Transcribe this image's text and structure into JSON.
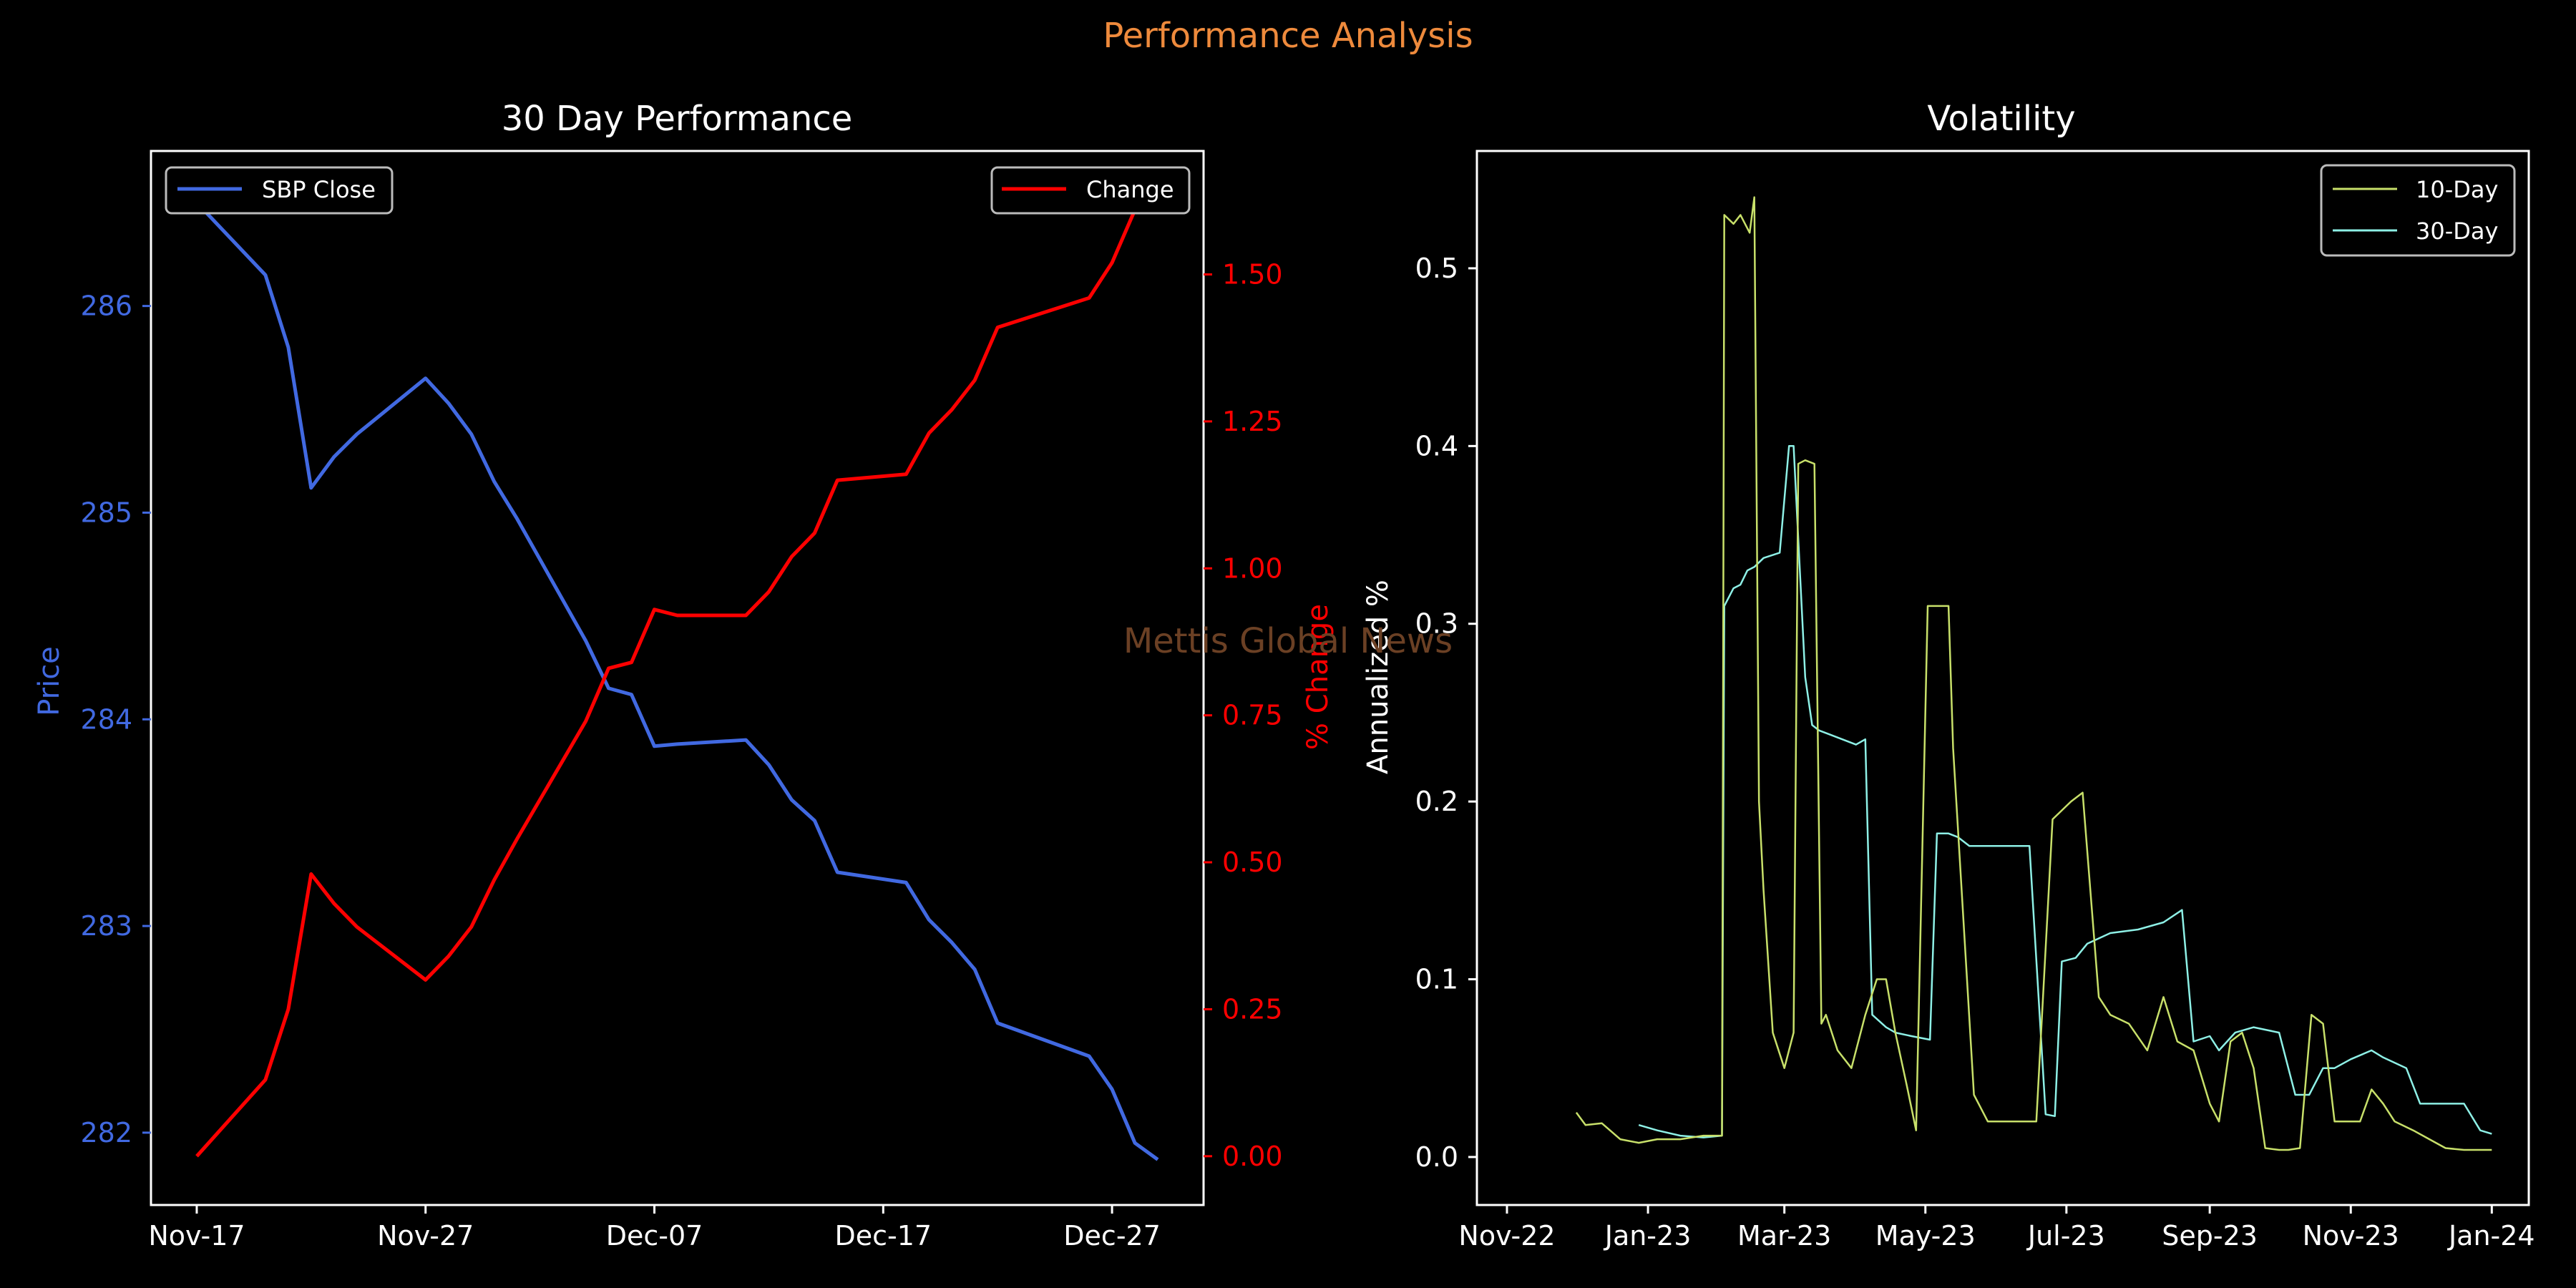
{
  "suptitle": "Performance Analysis",
  "watermark": "Mettis Global News",
  "colors": {
    "background": "#000000",
    "axes": "#ffffff",
    "price_line": "#4169e1",
    "change_line": "#ff0000",
    "vol10_line": "#c8e06a",
    "vol30_line": "#8ef0e6",
    "suptitle": "#ee8a3c",
    "watermark": "#6b4024"
  },
  "chart_data": [
    {
      "type": "line",
      "title": "30 Day Performance",
      "xlabel": "",
      "ylabel": "Price",
      "y2label": "% Change",
      "x_ticks": [
        "Nov-17",
        "Nov-27",
        "Dec-07",
        "Dec-17",
        "Dec-27"
      ],
      "xlim": [
        "2023-11-15",
        "2023-12-31"
      ],
      "ylim": [
        281.65,
        286.75
      ],
      "y_ticks": [
        282,
        283,
        284,
        285,
        286
      ],
      "y2lim": [
        -0.083,
        1.71
      ],
      "y2_ticks": [
        "0.00",
        "0.25",
        "0.50",
        "0.75",
        "1.00",
        "1.25",
        "1.50"
      ],
      "legend_left": "top-left",
      "legend_right": "top-right",
      "series": [
        {
          "name": "SBP Close",
          "axis": "left",
          "x": [
            "2023-11-17",
            "2023-11-20",
            "2023-11-21",
            "2023-11-22",
            "2023-11-23",
            "2023-11-24",
            "2023-11-27",
            "2023-11-28",
            "2023-11-29",
            "2023-11-30",
            "2023-12-01",
            "2023-12-04",
            "2023-12-05",
            "2023-12-06",
            "2023-12-07",
            "2023-12-08",
            "2023-12-11",
            "2023-12-12",
            "2023-12-13",
            "2023-12-14",
            "2023-12-15",
            "2023-12-18",
            "2023-12-19",
            "2023-12-20",
            "2023-12-21",
            "2023-12-22",
            "2023-12-26",
            "2023-12-27",
            "2023-12-28",
            "2023-12-29"
          ],
          "values": [
            286.5,
            286.15,
            285.8,
            285.12,
            285.27,
            285.38,
            285.65,
            285.53,
            285.38,
            285.15,
            284.97,
            284.38,
            284.15,
            284.12,
            283.87,
            283.88,
            283.9,
            283.78,
            283.61,
            283.51,
            283.26,
            283.21,
            283.03,
            282.92,
            282.79,
            282.53,
            282.37,
            282.21,
            281.95,
            281.87
          ]
        },
        {
          "name": "Change",
          "axis": "right",
          "x": [
            "2023-11-17",
            "2023-11-20",
            "2023-11-21",
            "2023-11-22",
            "2023-11-23",
            "2023-11-24",
            "2023-11-27",
            "2023-11-28",
            "2023-11-29",
            "2023-11-30",
            "2023-12-01",
            "2023-12-04",
            "2023-12-05",
            "2023-12-06",
            "2023-12-07",
            "2023-12-08",
            "2023-12-11",
            "2023-12-12",
            "2023-12-13",
            "2023-12-14",
            "2023-12-15",
            "2023-12-18",
            "2023-12-19",
            "2023-12-20",
            "2023-12-21",
            "2023-12-22",
            "2023-12-26",
            "2023-12-27",
            "2023-12-28",
            "2023-12-29"
          ],
          "values": [
            0.0,
            0.13,
            0.25,
            0.48,
            0.43,
            0.39,
            0.3,
            0.34,
            0.39,
            0.47,
            0.54,
            0.74,
            0.83,
            0.84,
            0.93,
            0.92,
            0.92,
            0.96,
            1.02,
            1.06,
            1.15,
            1.16,
            1.23,
            1.27,
            1.32,
            1.41,
            1.46,
            1.52,
            1.61,
            1.65
          ]
        }
      ]
    },
    {
      "type": "line",
      "title": "Volatility",
      "xlabel": "",
      "ylabel": "Annualized %",
      "x_ticks": [
        "Nov-22",
        "Jan-23",
        "Mar-23",
        "May-23",
        "Jul-23",
        "Sep-23",
        "Nov-23",
        "Jan-24"
      ],
      "xlim": [
        "2022-10-19",
        "2024-01-17"
      ],
      "ylim": [
        -0.027,
        0.566
      ],
      "y_ticks": [
        "0.0",
        "0.1",
        "0.2",
        "0.3",
        "0.4",
        "0.5"
      ],
      "legend": "top-right",
      "series": [
        {
          "name": "10-Day",
          "x": [
            "2022-12-01",
            "2022-12-05",
            "2022-12-12",
            "2022-12-20",
            "2022-12-28",
            "2023-01-05",
            "2023-01-15",
            "2023-01-25",
            "2023-02-02",
            "2023-02-03",
            "2023-02-07",
            "2023-02-10",
            "2023-02-14",
            "2023-02-16",
            "2023-02-18",
            "2023-02-20",
            "2023-02-24",
            "2023-03-01",
            "2023-03-05",
            "2023-03-07",
            "2023-03-10",
            "2023-03-14",
            "2023-03-17",
            "2023-03-19",
            "2023-03-24",
            "2023-03-30",
            "2023-04-05",
            "2023-04-10",
            "2023-04-14",
            "2023-04-18",
            "2023-04-23",
            "2023-04-27",
            "2023-05-02",
            "2023-05-06",
            "2023-05-11",
            "2023-05-13",
            "2023-05-22",
            "2023-05-24",
            "2023-05-28",
            "2023-06-05",
            "2023-06-10",
            "2023-06-18",
            "2023-06-25",
            "2023-07-03",
            "2023-07-08",
            "2023-07-15",
            "2023-07-20",
            "2023-07-28",
            "2023-08-05",
            "2023-08-12",
            "2023-08-18",
            "2023-08-25",
            "2023-09-01",
            "2023-09-05",
            "2023-09-10",
            "2023-09-15",
            "2023-09-20",
            "2023-09-25",
            "2023-10-01",
            "2023-10-05",
            "2023-10-10",
            "2023-10-15",
            "2023-10-20",
            "2023-10-25",
            "2023-11-01",
            "2023-11-05",
            "2023-11-10",
            "2023-11-15",
            "2023-11-20",
            "2023-11-28",
            "2023-12-05",
            "2023-12-12",
            "2023-12-20",
            "2023-12-27",
            "2024-01-01"
          ],
          "values": [
            0.025,
            0.018,
            0.019,
            0.01,
            0.008,
            0.01,
            0.01,
            0.012,
            0.012,
            0.53,
            0.525,
            0.53,
            0.52,
            0.54,
            0.2,
            0.15,
            0.07,
            0.05,
            0.07,
            0.39,
            0.392,
            0.39,
            0.075,
            0.08,
            0.06,
            0.05,
            0.08,
            0.1,
            0.1,
            0.07,
            0.04,
            0.015,
            0.31,
            0.31,
            0.31,
            0.23,
            0.035,
            0.03,
            0.02,
            0.02,
            0.02,
            0.02,
            0.19,
            0.2,
            0.205,
            0.09,
            0.08,
            0.075,
            0.06,
            0.09,
            0.065,
            0.06,
            0.03,
            0.02,
            0.065,
            0.07,
            0.05,
            0.005,
            0.004,
            0.004,
            0.005,
            0.08,
            0.075,
            0.02,
            0.02,
            0.02,
            0.038,
            0.03,
            0.02,
            0.015,
            0.01,
            0.005,
            0.004,
            0.004,
            0.004
          ]
        },
        {
          "name": "30-Day",
          "x": [
            "2022-12-28",
            "2023-01-05",
            "2023-01-15",
            "2023-01-25",
            "2023-02-02",
            "2023-02-03",
            "2023-02-07",
            "2023-02-10",
            "2023-02-13",
            "2023-02-16",
            "2023-02-20",
            "2023-02-27",
            "2023-03-03",
            "2023-03-05",
            "2023-03-10",
            "2023-03-13",
            "2023-03-16",
            "2023-03-20",
            "2023-04-01",
            "2023-04-05",
            "2023-04-08",
            "2023-04-14",
            "2023-04-18",
            "2023-04-25",
            "2023-05-03",
            "2023-05-06",
            "2023-05-11",
            "2023-05-15",
            "2023-05-20",
            "2023-06-01",
            "2023-06-15",
            "2023-06-22",
            "2023-06-26",
            "2023-06-29",
            "2023-07-05",
            "2023-07-10",
            "2023-07-20",
            "2023-08-01",
            "2023-08-12",
            "2023-08-20",
            "2023-08-25",
            "2023-09-01",
            "2023-09-05",
            "2023-09-12",
            "2023-09-20",
            "2023-10-01",
            "2023-10-08",
            "2023-10-14",
            "2023-10-20",
            "2023-10-25",
            "2023-11-01",
            "2023-11-10",
            "2023-11-15",
            "2023-11-25",
            "2023-12-01",
            "2023-12-10",
            "2023-12-20",
            "2023-12-27",
            "2024-01-01"
          ],
          "values": [
            0.018,
            0.015,
            0.012,
            0.011,
            0.012,
            0.31,
            0.32,
            0.322,
            0.33,
            0.332,
            0.337,
            0.34,
            0.4,
            0.4,
            0.27,
            0.243,
            0.24,
            0.238,
            0.232,
            0.235,
            0.08,
            0.073,
            0.07,
            0.068,
            0.066,
            0.182,
            0.182,
            0.18,
            0.175,
            0.175,
            0.175,
            0.024,
            0.023,
            0.11,
            0.112,
            0.12,
            0.126,
            0.128,
            0.132,
            0.139,
            0.065,
            0.068,
            0.06,
            0.07,
            0.073,
            0.07,
            0.035,
            0.035,
            0.05,
            0.05,
            0.055,
            0.06,
            0.056,
            0.05,
            0.03,
            0.03,
            0.03,
            0.015,
            0.013
          ]
        }
      ]
    }
  ]
}
